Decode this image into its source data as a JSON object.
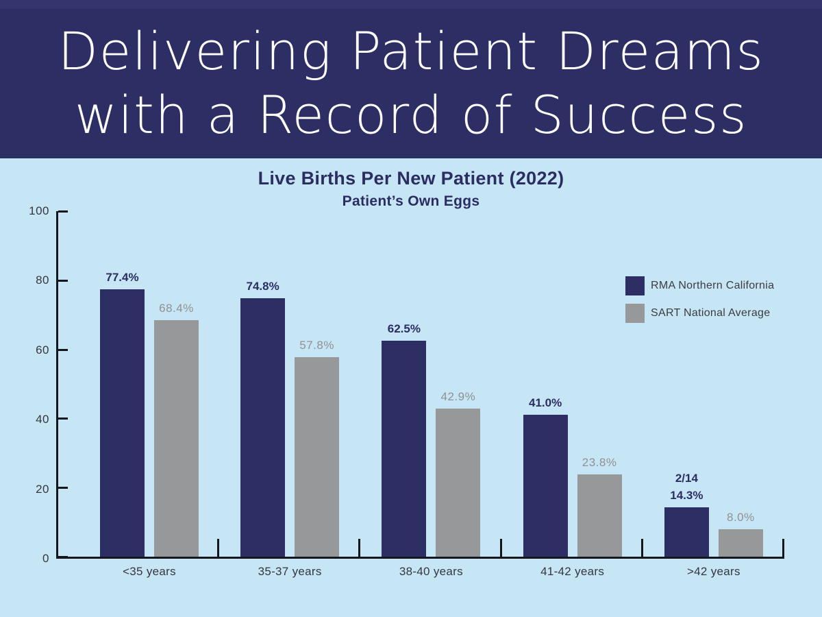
{
  "banner": {
    "line1": "Delivering Patient Dreams",
    "line2": "with a Record of Success",
    "background": "#2c2e64",
    "text_color": "#ffffff"
  },
  "chart": {
    "title": "Live Births Per New Patient (2022)",
    "subtitle": "Patient’s Own Eggs",
    "legend": [
      {
        "label": "RMA Northern California",
        "color": "#2c2e64"
      },
      {
        "label": "SART National Average",
        "color": "#97989a"
      }
    ]
  },
  "colors": {
    "banner_navy": "#2c2e64",
    "chart_background": "#c7e6f5",
    "bar_navy": "#2c2e64",
    "bar_gray": "#97989a",
    "axis": "#15151c",
    "navy_label": "#2b2d62",
    "gray_label": "#8f9193"
  },
  "chart_data": {
    "type": "bar",
    "title": "Live Births Per New Patient (2022)",
    "subtitle": "Patient’s Own Eggs",
    "categories": [
      "<35 years",
      "35-37 years",
      "38-40 years",
      "41-42 years",
      ">42 years"
    ],
    "series": [
      {
        "name": "RMA Northern California",
        "color": "#2c2e64",
        "values": [
          77.4,
          74.8,
          62.5,
          41.0,
          14.3
        ],
        "labels": [
          "77.4%",
          "74.8%",
          "62.5%",
          "41.0%",
          "14.3%"
        ],
        "extra_labels": [
          "",
          "",
          "",
          "",
          "2/14"
        ]
      },
      {
        "name": "SART National Average",
        "color": "#97989a",
        "values": [
          68.4,
          57.8,
          42.9,
          23.8,
          8.0
        ],
        "labels": [
          "68.4%",
          "57.8%",
          "42.9%",
          "23.8%",
          "8.0%"
        ]
      }
    ],
    "xlabel": "",
    "ylabel": "",
    "ylim": [
      0,
      100
    ],
    "yticks": [
      0,
      20,
      40,
      60,
      80,
      100
    ],
    "grid": false,
    "legend_position": "upper right"
  }
}
